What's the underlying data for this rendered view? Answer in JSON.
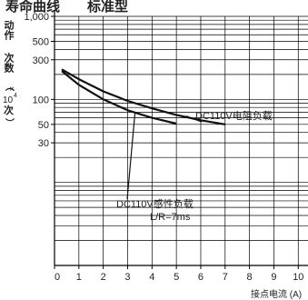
{
  "chart_data": {
    "type": "line",
    "title": "动作次数（×10⁴次）",
    "title_parts": {
      "top": "动作",
      "mid": "次数",
      "open": "（",
      "mult": "×",
      "base": "10",
      "exp": "4",
      "unit": "次",
      "close": "）"
    },
    "title_fragments": [
      "寿命曲线",
      "标准型"
    ],
    "xlabel": "接点电流 (A)",
    "ylabel": "动作次数（×10⁴次）",
    "x_ticks": [
      0,
      1,
      2,
      3,
      4,
      5,
      6,
      7,
      8,
      9,
      10
    ],
    "x_tick_labels": [
      "0",
      "1",
      "2",
      "3",
      "4",
      "5",
      "6",
      "7",
      "8",
      "9",
      "10"
    ],
    "xlim": [
      0,
      10
    ],
    "y_scale": "log",
    "ylim": [
      1,
      1000
    ],
    "y_tick_labels": [
      {
        "value": 1000,
        "label": "1,000"
      },
      {
        "value": 500,
        "label": "500"
      },
      {
        "value": 300,
        "label": "300"
      },
      {
        "value": 100,
        "label": "100"
      },
      {
        "value": 50,
        "label": "50"
      },
      {
        "value": 30,
        "label": "30"
      }
    ],
    "y_gridlines": [
      1000,
      900,
      800,
      700,
      600,
      500,
      400,
      300,
      200,
      100,
      90,
      80,
      70,
      60,
      50,
      40,
      30,
      20,
      10,
      9,
      8,
      7,
      6,
      5,
      4,
      3,
      2
    ],
    "grid": true,
    "series": [
      {
        "name": "DC110V电阻负载",
        "label_lines": [
          "DC110V电阻负载"
        ],
        "x": [
          0.3,
          1,
          2,
          3,
          4,
          5,
          6,
          7
        ],
        "y": [
          230,
          175,
          125,
          96,
          78,
          65,
          56,
          50
        ]
      },
      {
        "name": "DC110V感性负载 L/R=7ms",
        "label_lines": [
          "DC110V感性负载",
          "L/R=7ms"
        ],
        "x": [
          0.3,
          1,
          2,
          3,
          4,
          5
        ],
        "y": [
          220,
          150,
          100,
          74,
          60,
          51
        ]
      }
    ],
    "colors": {
      "line": "#111111",
      "grid": "#000000",
      "text": "#222222"
    }
  }
}
